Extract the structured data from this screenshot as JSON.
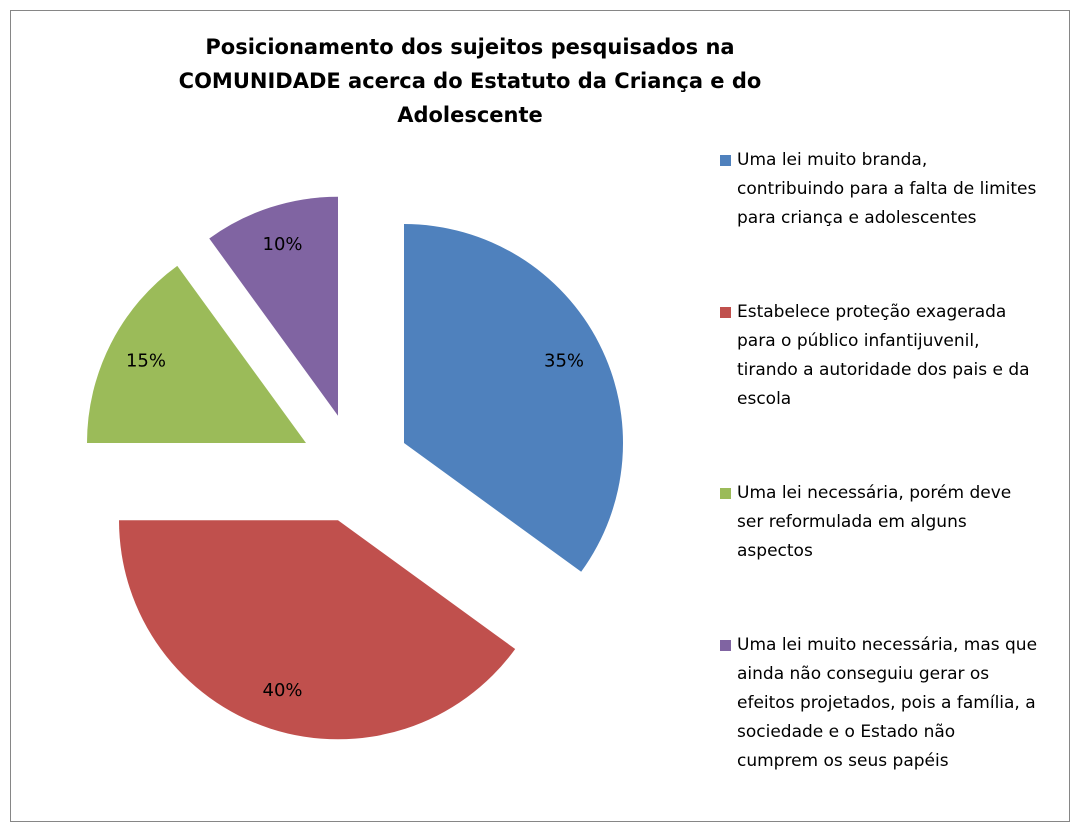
{
  "chart_data": {
    "type": "pie",
    "title": "Posicionamento dos sujeitos pesquisados na COMUNIDADE acerca do Estatuto da Criança e do Adolescente",
    "categories": [
      "Uma lei muito branda, contribuindo para a falta de limites para criança e adolescentes",
      "Estabelece proteção exagerada para o público infantijuvenil, tirando a autoridade dos pais e da escola",
      "Uma lei necessária, porém deve ser reformulada em alguns aspectos",
      "Uma lei muito necessária, mas que ainda não conseguiu gerar os efeitos projetados, pois a família, a sociedade e o Estado não cumprem os seus papéis"
    ],
    "values": [
      35,
      40,
      15,
      10
    ],
    "value_labels": [
      "35%",
      "40%",
      "15%",
      "10%"
    ],
    "colors": [
      "#4f81bd",
      "#c0504d",
      "#9bbb59",
      "#8064a2"
    ],
    "legend": "right"
  }
}
